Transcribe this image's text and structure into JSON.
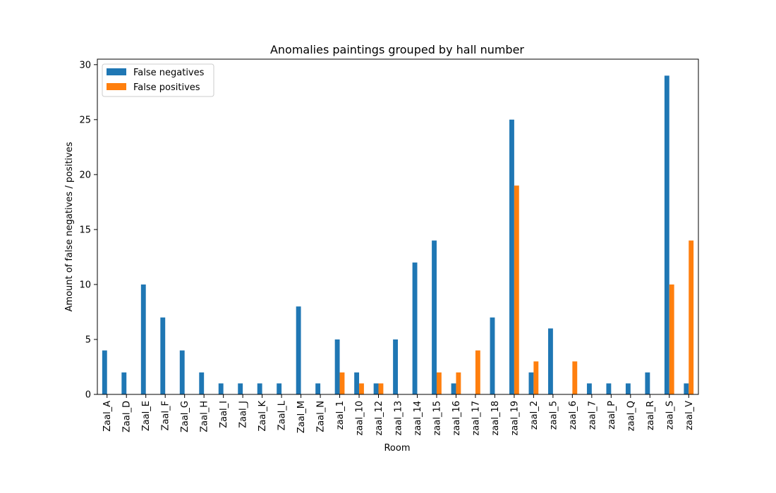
{
  "chart_data": {
    "type": "bar",
    "title": "Anomalies paintings grouped by hall number",
    "xlabel": "Room",
    "ylabel": "Amount of false negatives / positives",
    "ylim": [
      0,
      30.5
    ],
    "yticks": [
      0,
      5,
      10,
      15,
      20,
      25,
      30
    ],
    "grid": false,
    "legend_position": "top-left",
    "categories": [
      "Zaal_A",
      "Zaal_D",
      "Zaal_E",
      "Zaal_F",
      "Zaal_G",
      "Zaal_H",
      "Zaal_I",
      "Zaal_J",
      "Zaal_K",
      "Zaal_L",
      "Zaal_M",
      "Zaal_N",
      "zaal_1",
      "zaal_10",
      "zaal_12",
      "zaal_13",
      "zaal_14",
      "zaal_15",
      "zaal_16",
      "zaal_17",
      "zaal_18",
      "zaal_19",
      "zaal_2",
      "zaal_5",
      "zaal_6",
      "zaal_7",
      "zaal_P",
      "zaal_Q",
      "zaal_R",
      "zaal_S",
      "zaal_V"
    ],
    "series": [
      {
        "name": "False negatives",
        "color": "#1f77b4",
        "values": [
          4,
          2,
          10,
          7,
          4,
          2,
          1,
          1,
          1,
          1,
          8,
          1,
          5,
          2,
          1,
          5,
          12,
          14,
          1,
          0,
          7,
          25,
          2,
          6,
          0,
          1,
          1,
          1,
          2,
          29,
          1
        ]
      },
      {
        "name": "False positives",
        "color": "#ff7f0e",
        "values": [
          0,
          0,
          0,
          0,
          0,
          0,
          0,
          0,
          0,
          0,
          0,
          0,
          2,
          1,
          1,
          0,
          0,
          2,
          2,
          4,
          0,
          19,
          3,
          0,
          3,
          0,
          0,
          0,
          0,
          10,
          14
        ]
      }
    ]
  }
}
